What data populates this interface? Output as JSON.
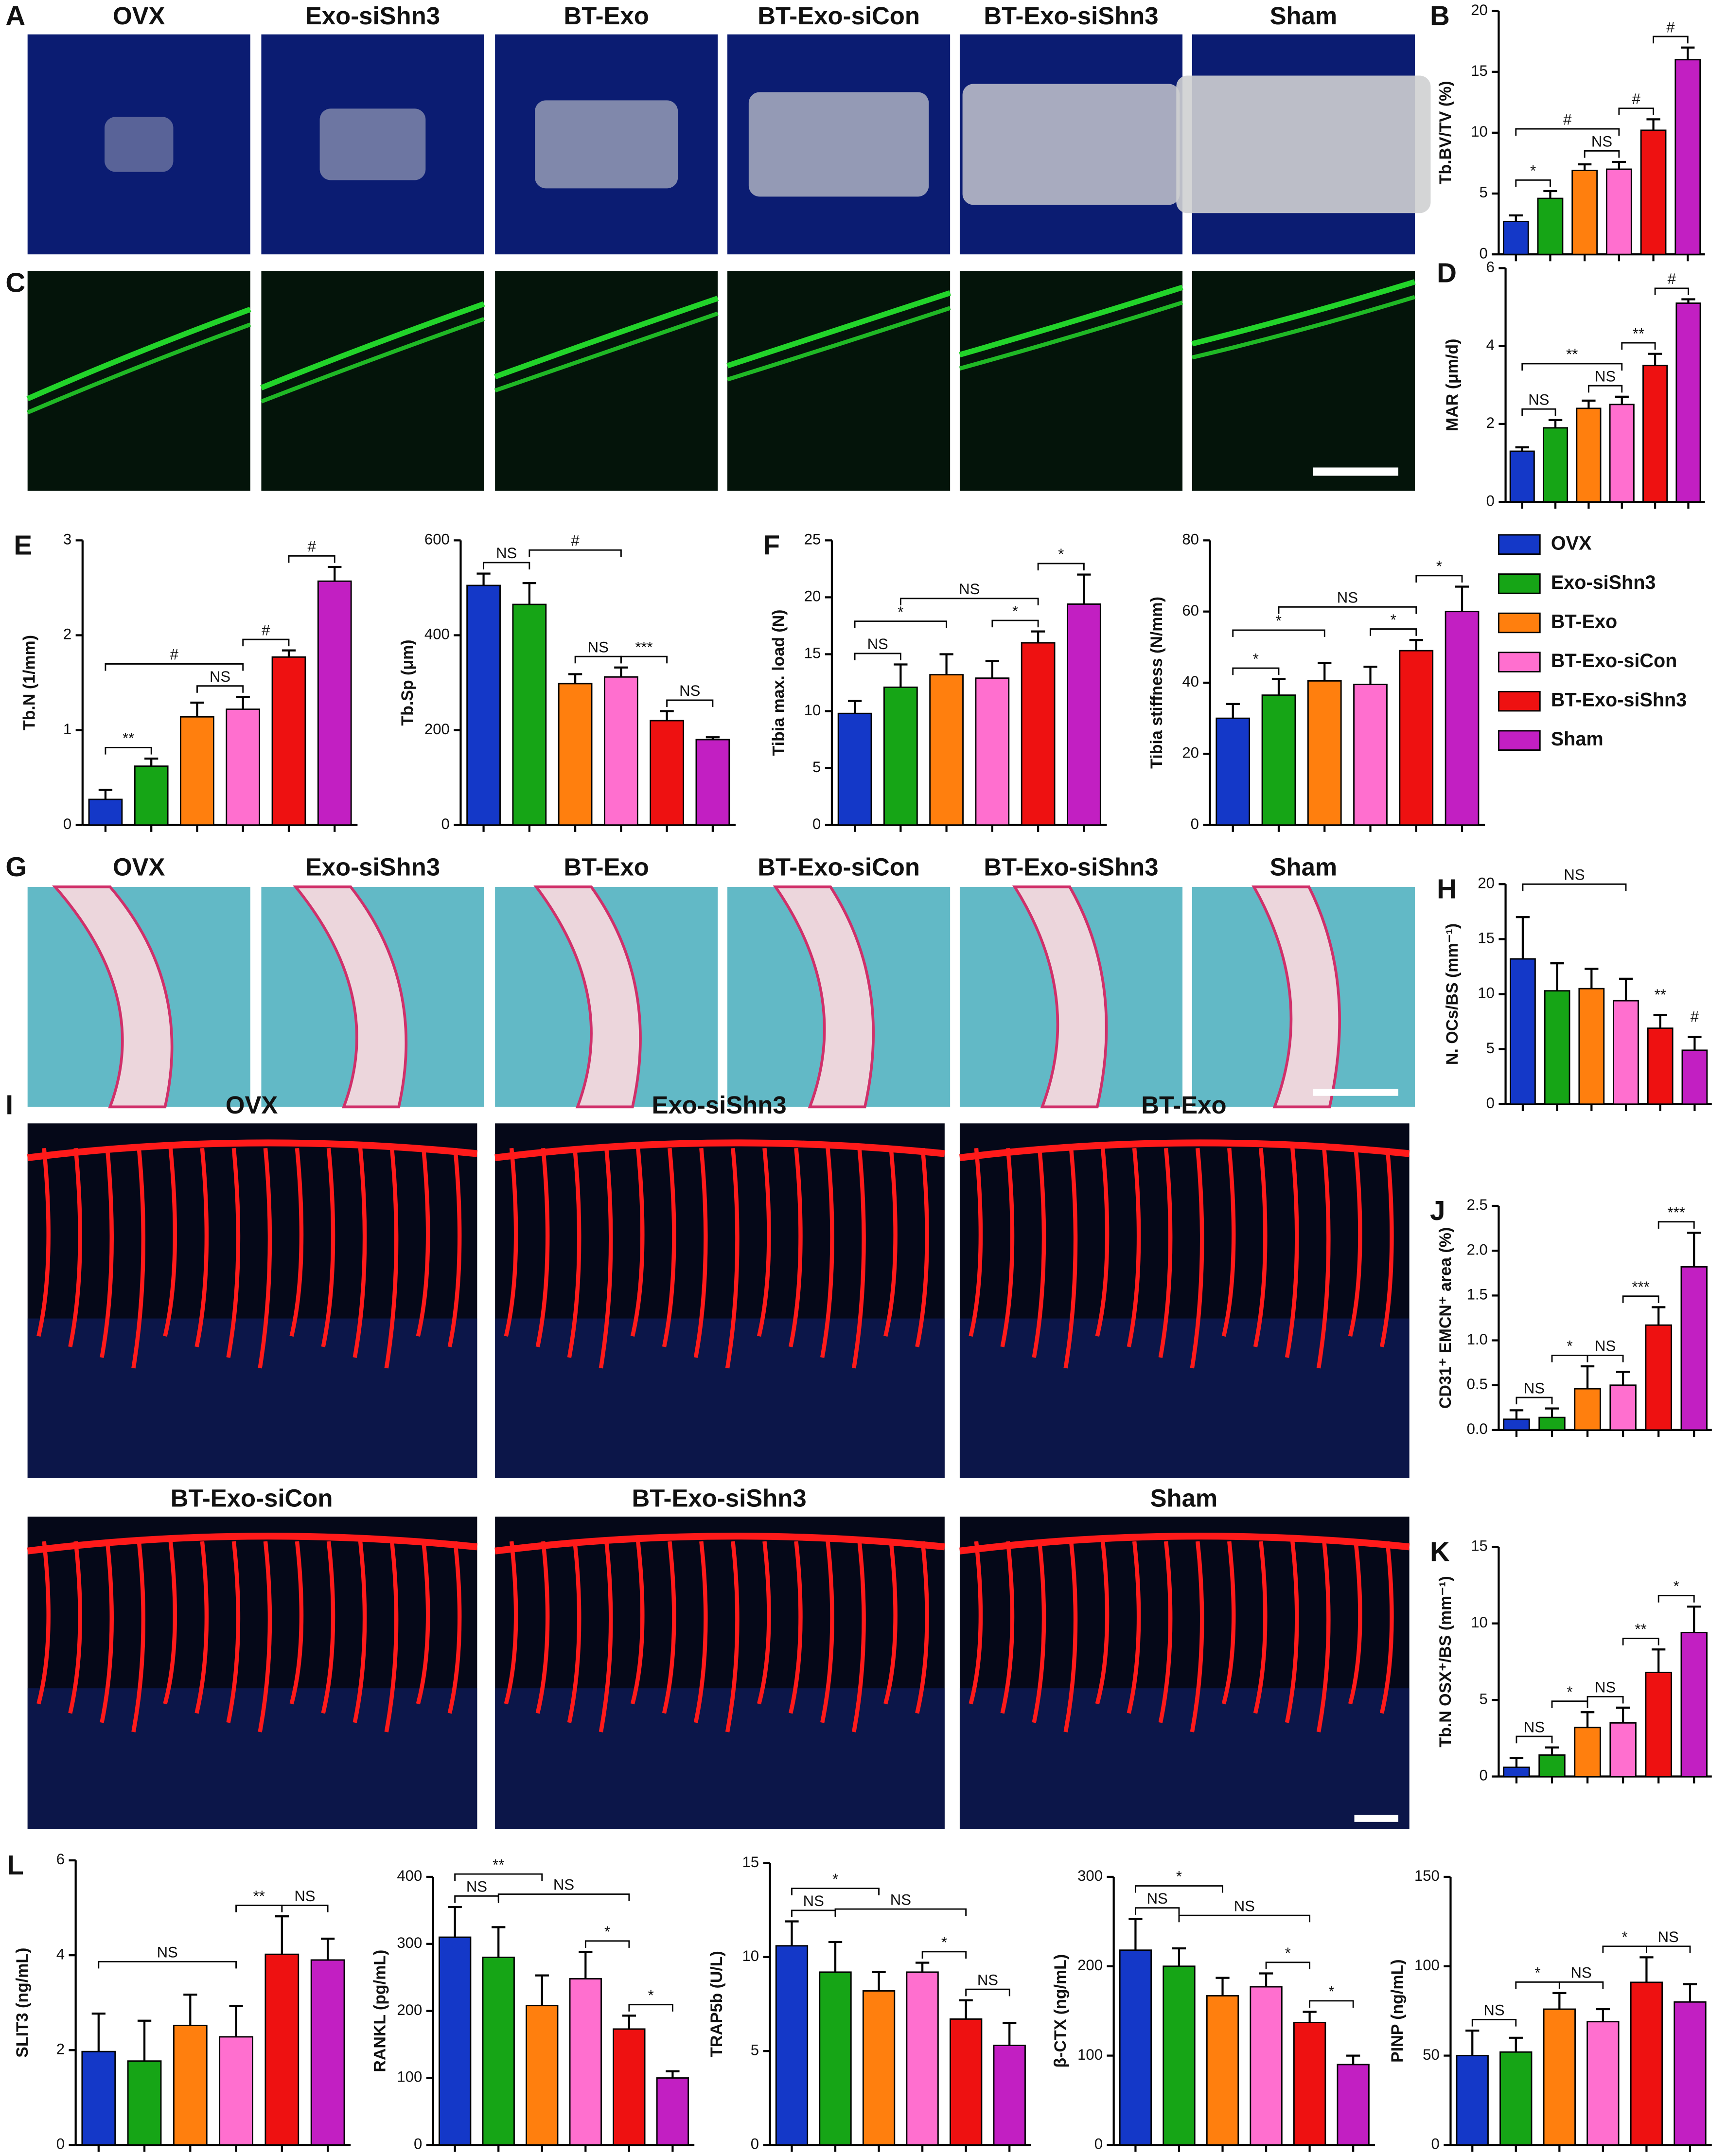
{
  "legend": {
    "items": [
      {
        "name": "OVX",
        "color": "#1438c8"
      },
      {
        "name": "Exo-siShn3",
        "color": "#16a516"
      },
      {
        "name": "BT-Exo",
        "color": "#ff7f0e"
      },
      {
        "name": "BT-Exo-siCon",
        "color": "#ff6fcf"
      },
      {
        "name": "BT-Exo-siShn3",
        "color": "#ee1111"
      },
      {
        "name": "Sham",
        "color": "#c21fc2"
      }
    ]
  },
  "image_panels": [
    {
      "letter": "A",
      "labels": [
        "OVX",
        "Exo-siShn3",
        "BT-Exo",
        "BT-Exo-siCon",
        "BT-Exo-siShn3",
        "Sham"
      ]
    },
    {
      "letter": "C"
    },
    {
      "letter": "G",
      "labels": [
        "OVX",
        "Exo-siShn3",
        "BT-Exo",
        "BT-Exo-siCon",
        "BT-Exo-siShn3",
        "Sham"
      ]
    },
    {
      "letter": "I",
      "labels": [
        "OVX",
        "Exo-siShn3",
        "BT-Exo",
        "BT-Exo-siCon",
        "BT-Exo-siShn3",
        "Sham"
      ]
    }
  ],
  "chart_data": [
    {
      "type": "bar",
      "panel": "B",
      "y_label": "Tb.BV/TV (%)",
      "values": [
        2.7,
        4.6,
        6.9,
        7.0,
        10.2,
        16.0
      ],
      "errors": [
        0.5,
        0.6,
        0.5,
        0.6,
        0.9,
        1.0
      ],
      "ylim": [
        0,
        20
      ],
      "yticks": [
        0,
        5,
        10,
        15,
        20
      ],
      "annotations": [
        "*",
        "#",
        "NS",
        "#",
        "#"
      ]
    },
    {
      "type": "bar",
      "panel": "D",
      "y_label": "MAR (μm/d)",
      "values": [
        1.3,
        1.9,
        2.4,
        2.5,
        3.5,
        5.1
      ],
      "errors": [
        0.1,
        0.2,
        0.2,
        0.2,
        0.3,
        0.1
      ],
      "ylim": [
        0,
        6
      ],
      "yticks": [
        0,
        2,
        4,
        6
      ],
      "annotations": [
        "NS",
        "**",
        "NS",
        "**",
        "#"
      ]
    },
    {
      "type": "bar",
      "panel": "E",
      "y_label": "Tb.N (1/mm)",
      "values": [
        0.27,
        0.62,
        1.14,
        1.22,
        1.77,
        2.57
      ],
      "errors": [
        0.1,
        0.08,
        0.15,
        0.13,
        0.07,
        0.15
      ],
      "ylim": [
        0,
        3
      ],
      "yticks": [
        0,
        1,
        2,
        3
      ],
      "annotations": [
        "**",
        "#",
        "NS",
        "#",
        "#"
      ]
    },
    {
      "type": "bar",
      "y_label": "Tb.Sp (μm)",
      "values": [
        505,
        465,
        298,
        312,
        220,
        180
      ],
      "errors": [
        25,
        45,
        20,
        20,
        20,
        5
      ],
      "ylim": [
        0,
        600
      ],
      "yticks": [
        0,
        200,
        400,
        600
      ],
      "annotations": [
        "NS",
        "#",
        "NS",
        "***",
        "NS"
      ]
    },
    {
      "type": "bar",
      "panel": "F",
      "y_label": "Tibia max. load (N)",
      "values": [
        9.8,
        12.1,
        13.2,
        12.9,
        16,
        19.4
      ],
      "errors": [
        1.1,
        2,
        1.8,
        1.5,
        1,
        2.6
      ],
      "ylim": [
        0,
        25
      ],
      "yticks": [
        0,
        5,
        10,
        15,
        20,
        25
      ],
      "annotations": [
        "NS",
        "*",
        "NS",
        "*",
        "*"
      ]
    },
    {
      "type": "bar",
      "y_label": "Tibia stiffness (N/mm)",
      "values": [
        30,
        36.5,
        40.5,
        39.5,
        49,
        60
      ],
      "errors": [
        4,
        4.5,
        5,
        5,
        3,
        7
      ],
      "ylim": [
        0,
        80
      ],
      "yticks": [
        0,
        20,
        40,
        60,
        80
      ],
      "annotations": [
        "*",
        "*",
        "NS",
        "*",
        "*"
      ]
    },
    {
      "type": "bar",
      "panel": "H",
      "y_label": "N. OCs/BS (mm⁻¹)",
      "values": [
        13.2,
        10.3,
        10.5,
        9.4,
        6.9,
        4.9
      ],
      "errors": [
        3.8,
        2.5,
        1.8,
        2,
        1.2,
        1.2
      ],
      "ylim": [
        0,
        20
      ],
      "yticks": [
        0,
        5,
        10,
        15,
        20
      ],
      "annotations": [
        "NS",
        "**",
        "#"
      ]
    },
    {
      "type": "bar",
      "panel": "J",
      "y_label": "CD31⁺ EMCN⁺ area (%)",
      "values": [
        0.12,
        0.14,
        0.46,
        0.5,
        1.17,
        1.82
      ],
      "errors": [
        0.1,
        0.1,
        0.25,
        0.15,
        0.2,
        0.38
      ],
      "ylim": [
        0,
        2.5
      ],
      "yticks": [
        {
          "value": 0,
          "label": "0.0"
        },
        0.5,
        {
          "value": 1,
          "label": "1.0"
        },
        1.5,
        {
          "value": 2,
          "label": "2.0"
        },
        2.5
      ],
      "annotations": [
        "NS",
        "*",
        "NS",
        "***",
        "***"
      ]
    },
    {
      "type": "bar",
      "panel": "K",
      "y_label": "Tb.N OSX⁺/BS (mm⁻¹)",
      "values": [
        0.6,
        1.4,
        3.2,
        3.5,
        6.8,
        9.4
      ],
      "errors": [
        0.6,
        0.5,
        1,
        1,
        1.5,
        1.7
      ],
      "ylim": [
        0,
        15
      ],
      "yticks": [
        0,
        5,
        10,
        15
      ],
      "annotations": [
        "NS",
        "*",
        "NS",
        "**",
        "*"
      ]
    },
    {
      "type": "bar",
      "panel": "L",
      "y_label": "SLIT3 (ng/mL)",
      "values": [
        1.97,
        1.77,
        2.52,
        2.28,
        4.02,
        3.9
      ],
      "errors": [
        0.8,
        0.85,
        0.65,
        0.65,
        0.8,
        0.45
      ],
      "ylim": [
        0,
        6
      ],
      "yticks": [
        0,
        2,
        4,
        6
      ],
      "annotations": [
        "NS",
        "**",
        "NS"
      ]
    },
    {
      "type": "bar",
      "y_label": "RANKL (pg/mL)",
      "values": [
        310,
        280,
        208,
        248,
        173,
        100
      ],
      "errors": [
        45,
        45,
        45,
        40,
        20,
        10
      ],
      "ylim": [
        0,
        400
      ],
      "yticks": [
        0,
        100,
        200,
        300,
        400
      ],
      "annotations": [
        "**",
        "NS",
        "NS",
        "*",
        "*"
      ]
    },
    {
      "type": "bar",
      "y_label": "TRAP5b (U/L)",
      "values": [
        10.6,
        9.2,
        8.2,
        9.2,
        6.7,
        5.3
      ],
      "errors": [
        1.3,
        1.6,
        1,
        0.5,
        1,
        1.2
      ],
      "ylim": [
        0,
        15
      ],
      "yticks": [
        0,
        5,
        10,
        15
      ],
      "annotations": [
        "*",
        "NS",
        "NS",
        "*",
        "NS"
      ]
    },
    {
      "type": "bar",
      "y_label": "β-CTX (ng/mL)",
      "values": [
        218,
        200,
        167,
        177,
        137,
        90
      ],
      "errors": [
        35,
        20,
        20,
        15,
        12,
        10
      ],
      "ylim": [
        0,
        300
      ],
      "yticks": [
        0,
        100,
        200,
        300
      ],
      "annotations": [
        "*",
        "NS",
        "NS",
        "*",
        "*"
      ]
    },
    {
      "type": "bar",
      "y_label": "PINP (ng/mL)",
      "values": [
        50,
        52,
        76,
        69,
        91,
        80
      ],
      "errors": [
        14,
        8,
        9,
        7,
        14,
        10
      ],
      "ylim": [
        0,
        150
      ],
      "yticks": [
        0,
        50,
        100,
        150
      ],
      "annotations": [
        "NS",
        "*",
        "NS",
        "*",
        "NS"
      ]
    }
  ]
}
